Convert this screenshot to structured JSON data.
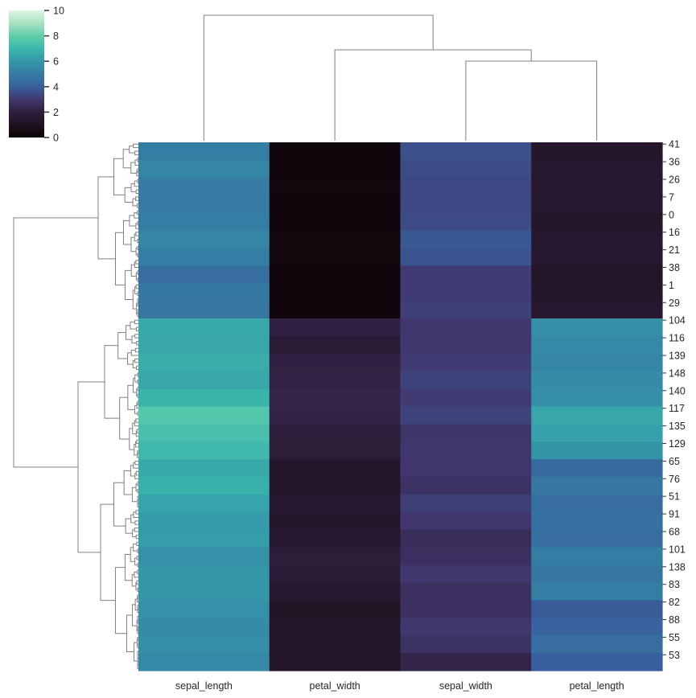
{
  "chart_data": {
    "type": "heatmap",
    "title": "",
    "colormap": "mako",
    "vmin": 0,
    "vmax": 10,
    "colorbar_ticks": [
      "0",
      "2",
      "4",
      "6",
      "8",
      "10"
    ],
    "columns": [
      "sepal_length",
      "petal_width",
      "sepal_width",
      "petal_length"
    ],
    "rows_per_label": 5,
    "rows": [
      {
        "label": "41",
        "values": [
          5.1,
          0.2,
          3.6,
          1.4
        ]
      },
      {
        "label": "36",
        "values": [
          5.4,
          0.2,
          3.5,
          1.5
        ]
      },
      {
        "label": "26",
        "values": [
          5.0,
          0.3,
          3.4,
          1.6
        ]
      },
      {
        "label": "7",
        "values": [
          5.0,
          0.2,
          3.4,
          1.5
        ]
      },
      {
        "label": "0",
        "values": [
          5.1,
          0.2,
          3.5,
          1.4
        ]
      },
      {
        "label": "16",
        "values": [
          5.4,
          0.3,
          3.8,
          1.5
        ]
      },
      {
        "label": "21",
        "values": [
          5.1,
          0.3,
          3.7,
          1.5
        ]
      },
      {
        "label": "38",
        "values": [
          4.5,
          0.2,
          3.1,
          1.3
        ]
      },
      {
        "label": "1",
        "values": [
          4.9,
          0.2,
          3.1,
          1.4
        ]
      },
      {
        "label": "29",
        "values": [
          4.8,
          0.2,
          3.2,
          1.5
        ]
      },
      {
        "label": "104",
        "values": [
          6.6,
          2.1,
          3.0,
          5.7
        ]
      },
      {
        "label": "116",
        "values": [
          6.5,
          1.8,
          3.0,
          5.5
        ]
      },
      {
        "label": "139",
        "values": [
          6.7,
          2.1,
          3.1,
          5.4
        ]
      },
      {
        "label": "148",
        "values": [
          6.5,
          2.2,
          3.3,
          5.6
        ]
      },
      {
        "label": "140",
        "values": [
          6.9,
          2.3,
          3.1,
          5.7
        ]
      },
      {
        "label": "117",
        "values": [
          7.7,
          2.2,
          3.3,
          6.5
        ]
      },
      {
        "label": "135",
        "values": [
          7.4,
          2.0,
          2.9,
          6.3
        ]
      },
      {
        "label": "129",
        "values": [
          7.1,
          1.9,
          3.0,
          5.9
        ]
      },
      {
        "label": "65",
        "values": [
          6.6,
          1.4,
          3.0,
          4.4
        ]
      },
      {
        "label": "76",
        "values": [
          6.8,
          1.4,
          2.8,
          4.8
        ]
      },
      {
        "label": "51",
        "values": [
          6.4,
          1.5,
          3.2,
          4.5
        ]
      },
      {
        "label": "91",
        "values": [
          6.1,
          1.4,
          3.0,
          4.6
        ]
      },
      {
        "label": "68",
        "values": [
          6.2,
          1.5,
          2.6,
          4.5
        ]
      },
      {
        "label": "101",
        "values": [
          5.8,
          1.9,
          2.7,
          5.1
        ]
      },
      {
        "label": "138",
        "values": [
          6.0,
          1.8,
          3.0,
          4.8
        ]
      },
      {
        "label": "83",
        "values": [
          6.0,
          1.6,
          2.7,
          5.1
        ]
      },
      {
        "label": "82",
        "values": [
          5.8,
          1.2,
          2.7,
          3.9
        ]
      },
      {
        "label": "88",
        "values": [
          5.6,
          1.3,
          3.0,
          4.1
        ]
      },
      {
        "label": "55",
        "values": [
          5.7,
          1.3,
          2.8,
          4.5
        ]
      },
      {
        "label": "53",
        "values": [
          5.5,
          1.3,
          2.3,
          4.0
        ]
      }
    ]
  }
}
